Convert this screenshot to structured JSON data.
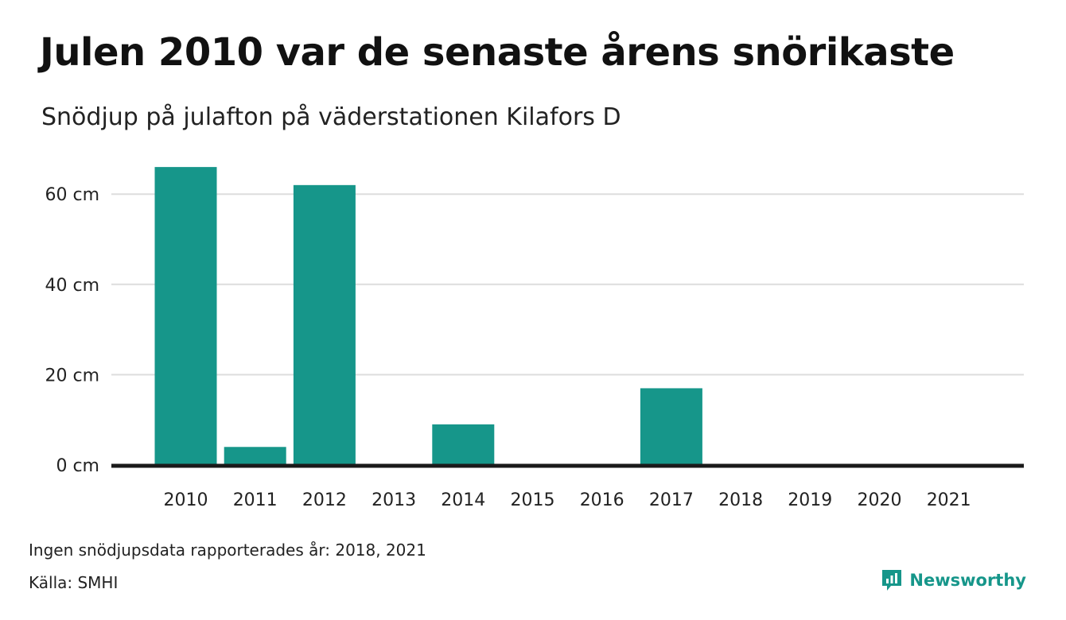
{
  "colors": {
    "bar": "#16968a",
    "grid": "#dddddd",
    "axis": "#1a1a1a",
    "brand": "#16968a"
  },
  "header": {
    "title": "Julen 2010 var de senaste årens snörikaste",
    "subtitle": "Snödjup på julafton på väderstationen Kilafors D"
  },
  "footer": {
    "note": "Ingen snödjupsdata rapporterades år: 2018, 2021",
    "source": "Källa: SMHI",
    "brand_name": "Newsworthy",
    "brand_icon": "newsworthy-logo-icon"
  },
  "chart_data": {
    "type": "bar",
    "categories": [
      "2010",
      "2011",
      "2012",
      "2013",
      "2014",
      "2015",
      "2016",
      "2017",
      "2018",
      "2019",
      "2020",
      "2021"
    ],
    "values": [
      66,
      4,
      62,
      0,
      9,
      0,
      0,
      17,
      null,
      0,
      0,
      null
    ],
    "title": "Julen 2010 var de senaste årens snörikaste",
    "subtitle": "Snödjup på julafton på väderstationen Kilafors D",
    "xlabel": "",
    "ylabel": "",
    "ylim": [
      0,
      66
    ],
    "yticks": [
      0,
      20,
      40,
      60
    ],
    "ytick_labels": [
      "0 cm",
      "20 cm",
      "40 cm",
      "60 cm"
    ],
    "grid": true,
    "legend": "none"
  }
}
